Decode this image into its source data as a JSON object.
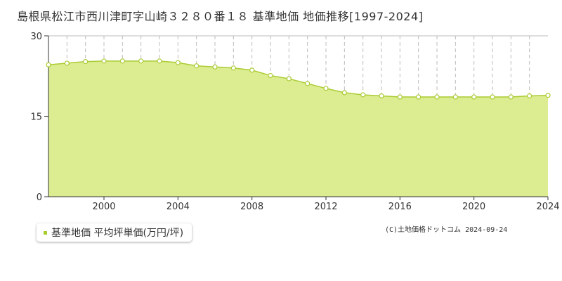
{
  "title": "島根県松江市西川津町字山崎３２８０番１８ 基準地価 地価推移[1997-2024]",
  "legend": {
    "label": "基準地価 平均坪単価(万円/坪)"
  },
  "copyright": "(C)土地価格ドットコム 2024-09-24",
  "colors": {
    "fill": "#dcec90",
    "line": "#aacc33",
    "marker": "#aacc33",
    "grid": "#bbbbbb",
    "axis": "#333333"
  },
  "chart_data": {
    "type": "area",
    "title": "",
    "xlabel": "",
    "ylabel": "",
    "xlim": [
      1997,
      2024
    ],
    "ylim": [
      0,
      30
    ],
    "x_ticks": [
      2000,
      2004,
      2008,
      2012,
      2016,
      2020,
      2024
    ],
    "y_ticks": [
      0,
      15,
      30
    ],
    "grid": true,
    "legend_position": "bottom-left",
    "series": [
      {
        "name": "基準地価 平均坪単価(万円/坪)",
        "x": [
          1997,
          1998,
          1999,
          2000,
          2001,
          2002,
          2003,
          2004,
          2005,
          2006,
          2007,
          2008,
          2009,
          2010,
          2011,
          2012,
          2013,
          2014,
          2015,
          2016,
          2017,
          2018,
          2019,
          2020,
          2021,
          2022,
          2023,
          2024
        ],
        "values": [
          24.6,
          24.9,
          25.2,
          25.3,
          25.3,
          25.3,
          25.3,
          25.0,
          24.4,
          24.2,
          24.0,
          23.6,
          22.6,
          22.0,
          21.1,
          20.2,
          19.4,
          19.0,
          18.8,
          18.6,
          18.6,
          18.6,
          18.6,
          18.6,
          18.6,
          18.6,
          18.8,
          18.9
        ]
      }
    ]
  }
}
